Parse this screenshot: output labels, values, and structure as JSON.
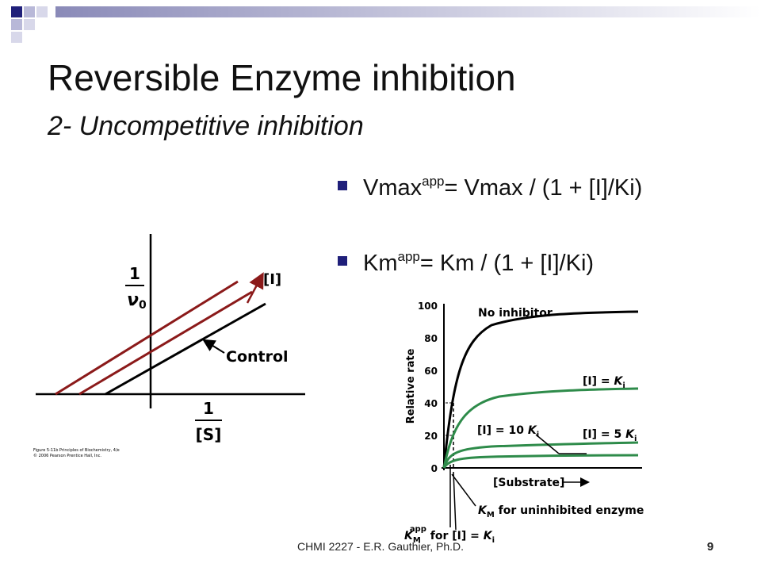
{
  "slide": {
    "title": "Reversible Enzyme inhibition",
    "subtitle": "2- Uncompetitive inhibition",
    "bullets": [
      {
        "main": "Vmax",
        "sup": "app",
        "rest": "= Vmax / (1 + [I]/Ki)"
      },
      {
        "main": "Km",
        "sup": "app",
        "rest": "= Km / (1 + [I]/Ki)"
      }
    ],
    "footer": "CHMI 2227 - E.R. Gauthier, Ph.D.",
    "page_number": "9"
  },
  "figure_left": {
    "y_label": {
      "numerator": "1",
      "symbol": "ν",
      "sub": "0"
    },
    "x_label": {
      "numerator": "1",
      "denominator": "[S]"
    },
    "arrow_label": "[I]",
    "control_label": "Control",
    "caption": [
      "Figure 5-11b  Principles of Biochemistry, 4/e",
      "© 2006 Pearson Prentice Hall, Inc."
    ]
  },
  "figure_right": {
    "y_title": "Relative rate",
    "y_ticks": [
      "0",
      "20",
      "40",
      "60",
      "80",
      "100"
    ],
    "x_title": "[Substrate]",
    "curve_labels": {
      "none": "No inhibitor",
      "ki": {
        "prefix": "[I] = ",
        "symbol": "K",
        "sub": "i"
      },
      "ki10": {
        "prefix": "[I] = 10 ",
        "symbol": "K",
        "sub": "i"
      },
      "ki5": {
        "prefix": "[I] = 5 ",
        "symbol": "K",
        "sub": "i"
      }
    },
    "km_note": {
      "symbol": "K",
      "sub": "M",
      "rest": " for uninhibited enzyme"
    },
    "kmapp_note": {
      "symbol": "K",
      "sub": "M",
      "sup": "app",
      "rest": " for [I] = ",
      "symbol2": "K",
      "sub2": "i"
    }
  }
}
